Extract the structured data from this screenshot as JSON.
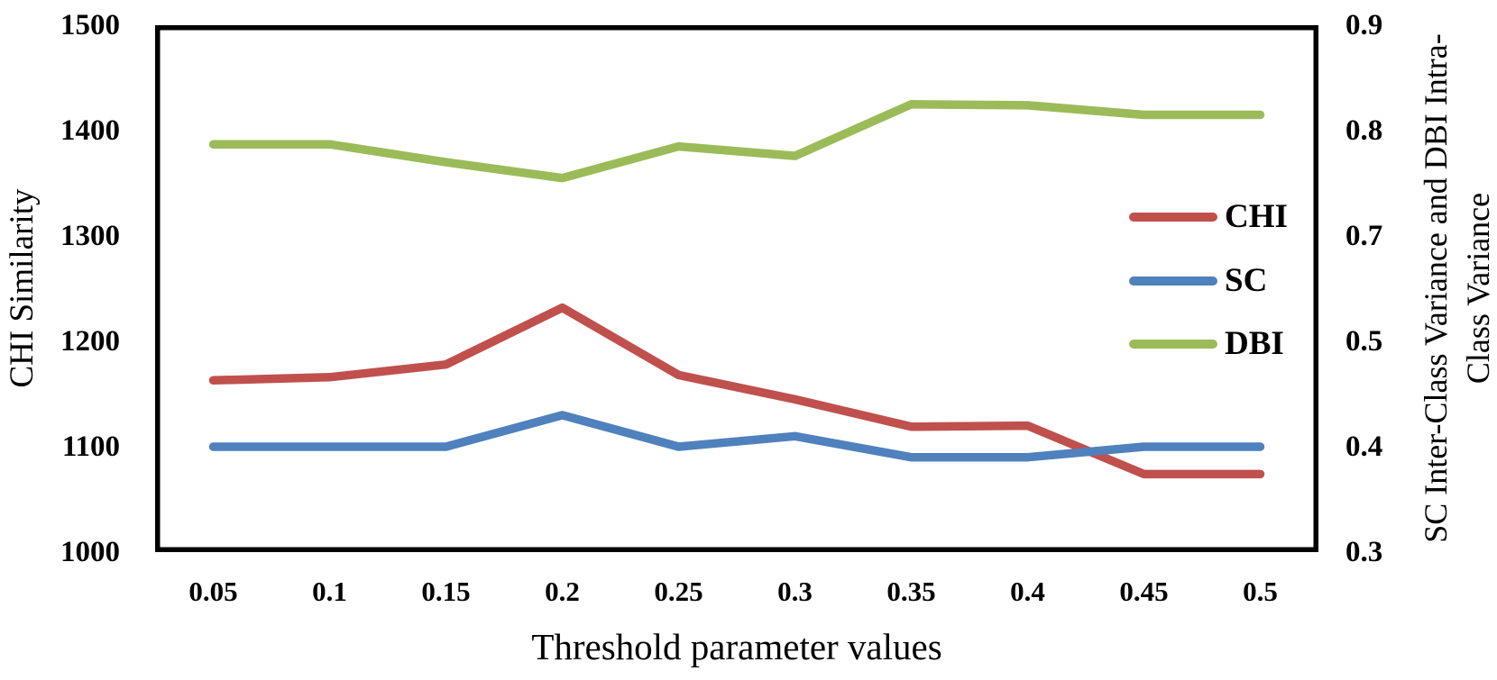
{
  "chart_data": {
    "type": "line",
    "title": "",
    "x_categories": [
      "0.05",
      "0.1",
      "0.15",
      "0.2",
      "0.25",
      "0.3",
      "0.35",
      "0.4",
      "0.45",
      "0.5"
    ],
    "xlabel": "Threshold parameter values",
    "ylabel_left": "CHI Similarity",
    "ylabel_right_line1": "SC Inter-Class Variance and DBI Intra-",
    "ylabel_right_line2": "Class Variance",
    "y_left_ticks": [
      "1500",
      "1400",
      "1300",
      "1200",
      "1100",
      "1000"
    ],
    "y_right_ticks": [
      "0.9",
      "0.8",
      "0.7",
      "0.5",
      "0.4",
      "0.3"
    ],
    "ylim_left": [
      1000,
      1500
    ],
    "y_right_tick_values_bottom_to_top": [
      0.3,
      0.4,
      0.5,
      0.7,
      0.8,
      0.9
    ],
    "grid": false,
    "legend_position": "inside-right",
    "axis_color": "#000000",
    "background_color": "#ffffff",
    "series": [
      {
        "name": "CHI",
        "axis": "left",
        "color": "#C0504D",
        "values": [
          1163,
          1166,
          1178,
          1232,
          1168,
          1145,
          1119,
          1120,
          1074,
          1074
        ]
      },
      {
        "name": "SC",
        "axis": "right",
        "color": "#4F81BD",
        "values": [
          0.4,
          0.4,
          0.4,
          0.43,
          0.4,
          0.41,
          0.39,
          0.39,
          0.4,
          0.4
        ]
      },
      {
        "name": "DBI",
        "axis": "right",
        "color": "#9BBB59",
        "values": [
          0.787,
          0.787,
          0.77,
          0.755,
          0.785,
          0.776,
          0.825,
          0.824,
          0.815,
          0.815
        ]
      }
    ]
  }
}
